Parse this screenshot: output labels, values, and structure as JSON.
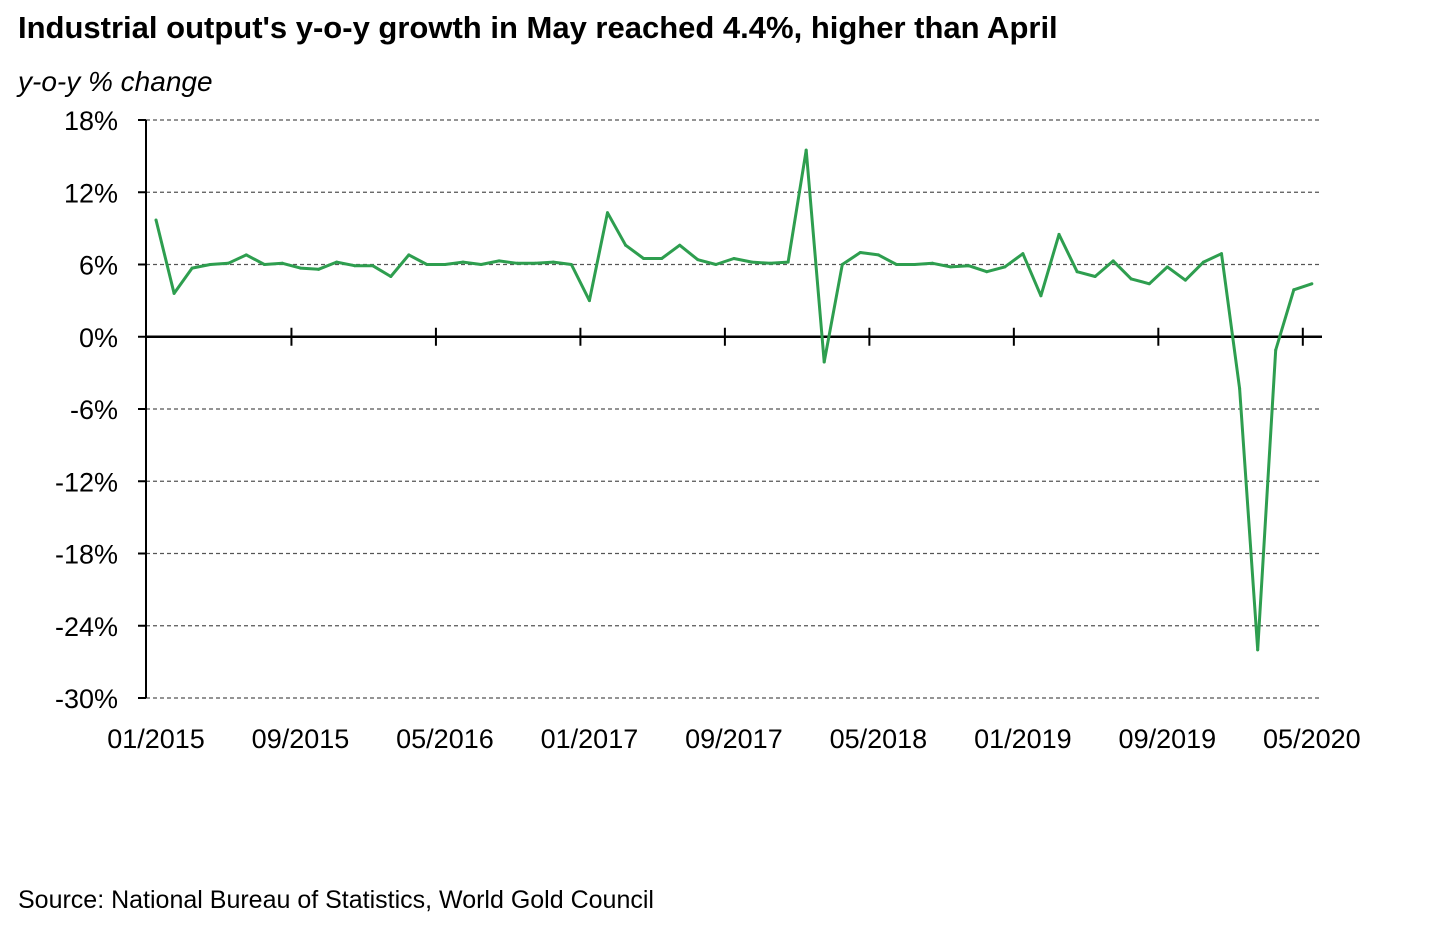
{
  "chart_data": {
    "type": "line",
    "title": "Industrial output's y-o-y growth in May reached 4.4%, higher than April",
    "ylabel": "y-o-y % change",
    "source": "Source: National Bureau of Statistics, World Gold Council",
    "ylim": [
      -30,
      18
    ],
    "yticks": [
      18,
      12,
      6,
      0,
      -6,
      -12,
      -18,
      -24,
      -30
    ],
    "ytick_labels": [
      "18%",
      "12%",
      "6%",
      "0%",
      "-6%",
      "-12%",
      "-18%",
      "-24%",
      "-30%"
    ],
    "xtick_labels": [
      "01/2015",
      "09/2015",
      "05/2016",
      "01/2017",
      "09/2017",
      "05/2018",
      "01/2019",
      "09/2019",
      "05/2020"
    ],
    "x_start": "01/2015",
    "x_end": "05/2020",
    "grid": true,
    "series": [
      {
        "name": "Industrial output y-o-y",
        "color": "#2e9e4f",
        "values": [
          9.7,
          3.6,
          5.7,
          6.0,
          6.1,
          6.8,
          6.0,
          6.1,
          5.7,
          5.6,
          6.2,
          5.9,
          5.9,
          5.0,
          6.8,
          6.0,
          6.0,
          6.2,
          6.0,
          6.3,
          6.1,
          6.1,
          6.2,
          6.0,
          3.0,
          10.3,
          7.6,
          6.5,
          6.5,
          7.6,
          6.4,
          6.0,
          6.5,
          6.2,
          6.1,
          6.2,
          15.5,
          -2.1,
          6.0,
          7.0,
          6.8,
          6.0,
          6.0,
          6.1,
          5.8,
          5.9,
          5.4,
          5.8,
          6.9,
          3.4,
          8.5,
          5.4,
          5.0,
          6.3,
          4.8,
          4.4,
          5.8,
          4.7,
          6.2,
          6.9,
          -4.3,
          -26.0,
          -1.1,
          3.9,
          4.4
        ]
      }
    ]
  }
}
